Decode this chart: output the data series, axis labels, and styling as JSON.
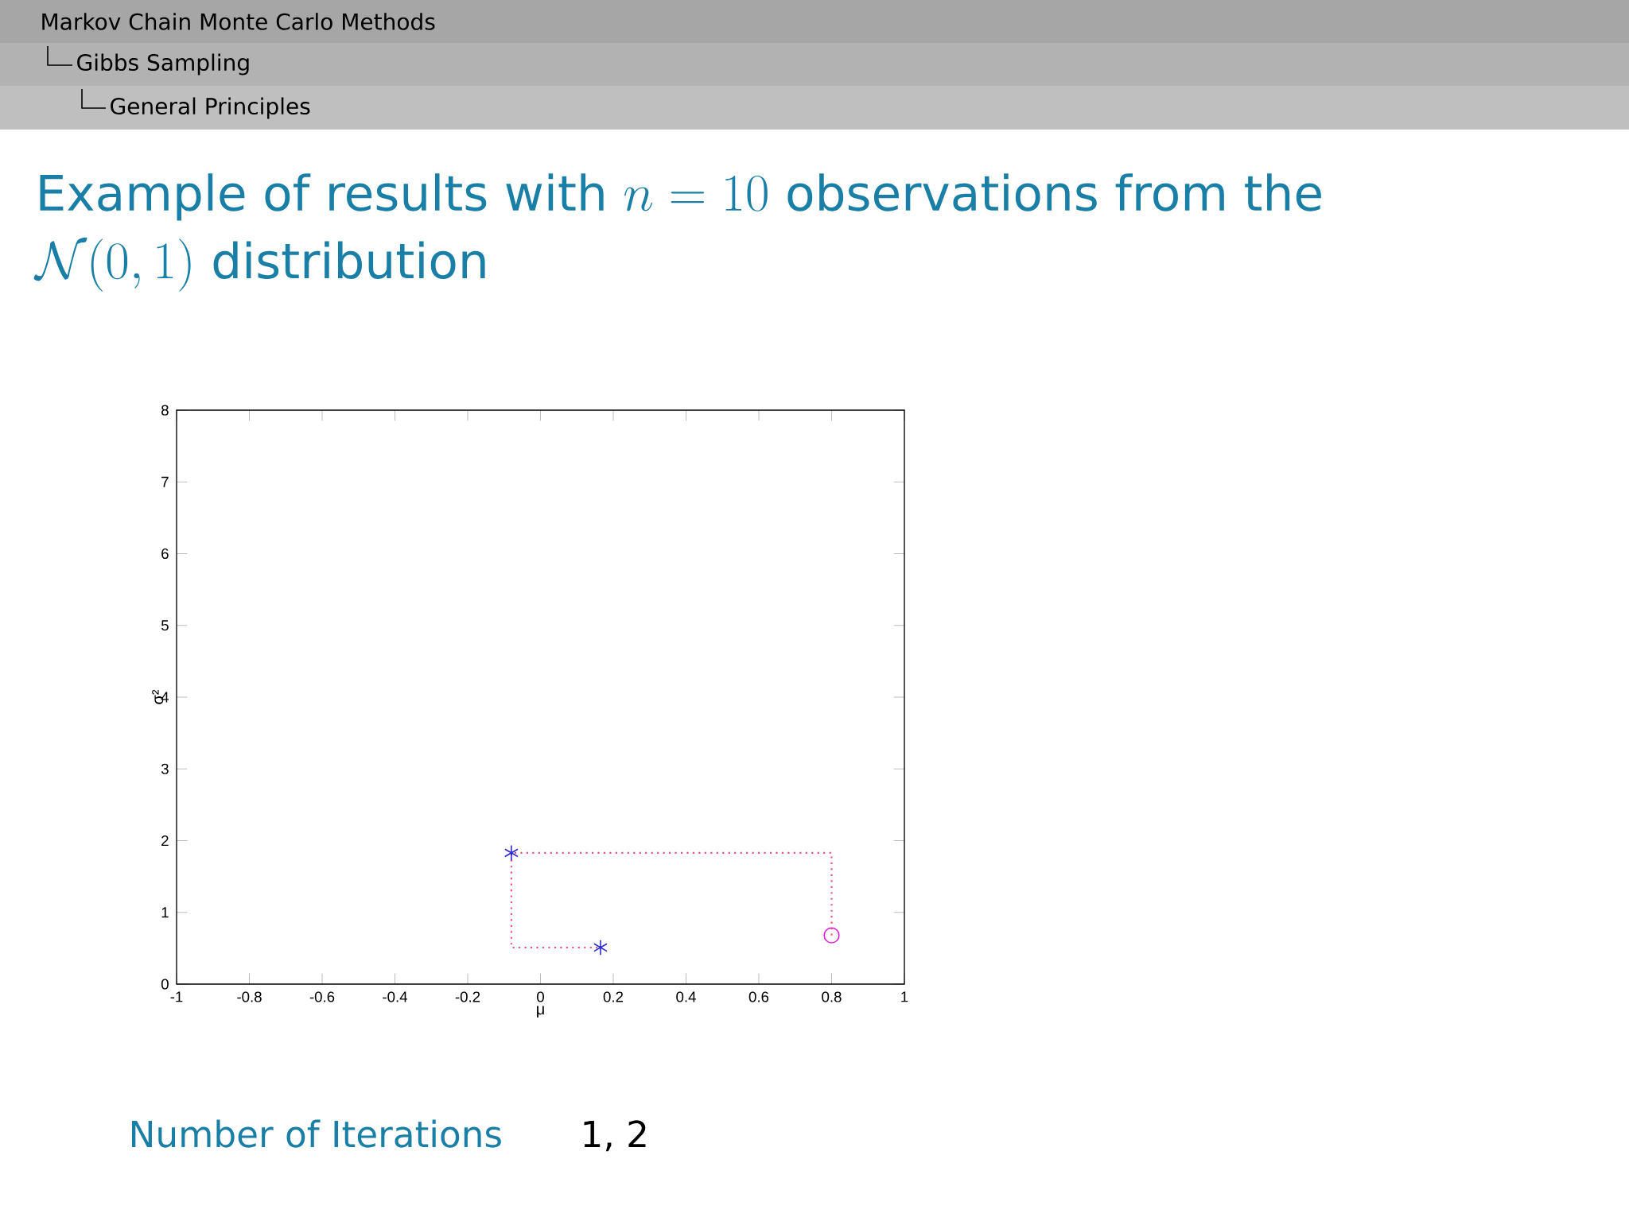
{
  "chart_data": {
    "type": "scatter",
    "title": "\\begin{array}{@{}l@{}}\\mbox{Example of results with } n = 10 \\mbox{ observations from the}\\\\[4pt] \\mathcal{N}(0,1)\\mbox{ distribution}\\end{array}",
    "xlabel": "μ",
    "ylabel": "σ²",
    "xlim": [
      -1,
      1
    ],
    "ylim": [
      0,
      8
    ],
    "xticks": [
      -1,
      -0.8,
      -0.6,
      -0.4,
      -0.2,
      0,
      0.2,
      0.4,
      0.6,
      0.8,
      1
    ],
    "yticks": [
      0,
      1,
      2,
      3,
      4,
      5,
      6,
      7,
      8
    ],
    "grid": false,
    "series": [
      {
        "type": "line",
        "color": "#e8507a",
        "line_style": "dotted",
        "marker": "none",
        "x": [
          0.8,
          0.8,
          -0.08,
          -0.08,
          0.165
        ],
        "values": [
          0.68,
          1.83,
          1.83,
          0.51,
          0.51
        ]
      },
      {
        "color": "#2a2ad0",
        "marker": "cross",
        "x": [
          -0.08,
          0.165
        ],
        "values": [
          1.83,
          0.51
        ]
      },
      {
        "color": "#e020d8",
        "marker": "circle",
        "x": [
          0.8
        ],
        "values": [
          0.68
        ]
      }
    ],
    "annotations": [
      "Markov Chain Monte Carlo Methods",
      "Gibbs Sampling",
      "General Principles",
      "Number of Iterations",
      "1, 2"
    ]
  }
}
